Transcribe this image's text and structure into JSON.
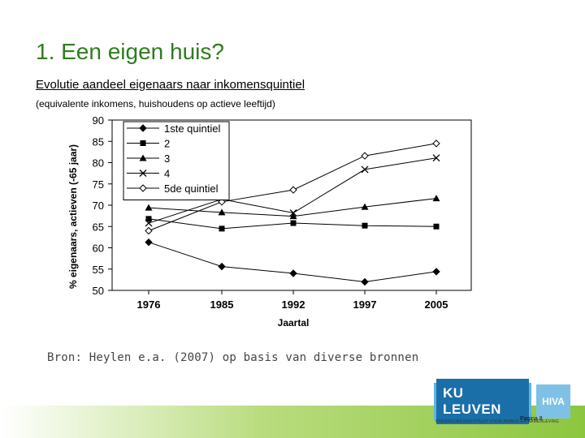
{
  "slide": {
    "title": "1. Een eigen huis?",
    "subtitle": "Evolutie aandeel eigenaars naar inkomensquintiel",
    "note": "(equivalente inkomens, huishoudens op actieve leeftijd)",
    "source": "Bron: Heylen e.a. (2007) op basis van diverse bronnen",
    "page_label": "Pagina 8",
    "org_line": "ONDERZOEKSINSTITUUT VOOR ARBEID EN SAMENLEVING"
  },
  "logos": {
    "ku_leuven": "KU LEUVEN",
    "hiva": "HIVA"
  },
  "colors": {
    "title_green": "#2e7d1e",
    "ku_blue": "#1d8dcf",
    "band_green": "#8cc63f"
  },
  "chart_data": {
    "type": "line",
    "title": "",
    "xlabel": "Jaartal",
    "ylabel": "% eigenaars, actieven (-65 jaar)",
    "categories": [
      "1976",
      "1985",
      "1992",
      "1997",
      "2005"
    ],
    "ylim": [
      50,
      90
    ],
    "yticks": [
      50,
      55,
      60,
      65,
      70,
      75,
      80,
      85,
      90
    ],
    "grid": false,
    "legend_position": "top-left",
    "series": [
      {
        "name": "1ste quintiel",
        "marker": "diamond-filled",
        "values": [
          61.3,
          55.6,
          54.0,
          52.0,
          54.4
        ]
      },
      {
        "name": "2",
        "marker": "square-filled",
        "values": [
          66.8,
          64.5,
          65.8,
          65.2,
          65.0
        ]
      },
      {
        "name": "3",
        "marker": "triangle-filled",
        "values": [
          69.4,
          68.3,
          67.4,
          69.6,
          71.6
        ]
      },
      {
        "name": "4",
        "marker": "x",
        "values": [
          65.8,
          71.4,
          68.2,
          78.4,
          81.1
        ]
      },
      {
        "name": "5de quintiel",
        "marker": "diamond-open",
        "values": [
          64.0,
          70.8,
          73.6,
          81.6,
          84.5
        ]
      }
    ]
  }
}
